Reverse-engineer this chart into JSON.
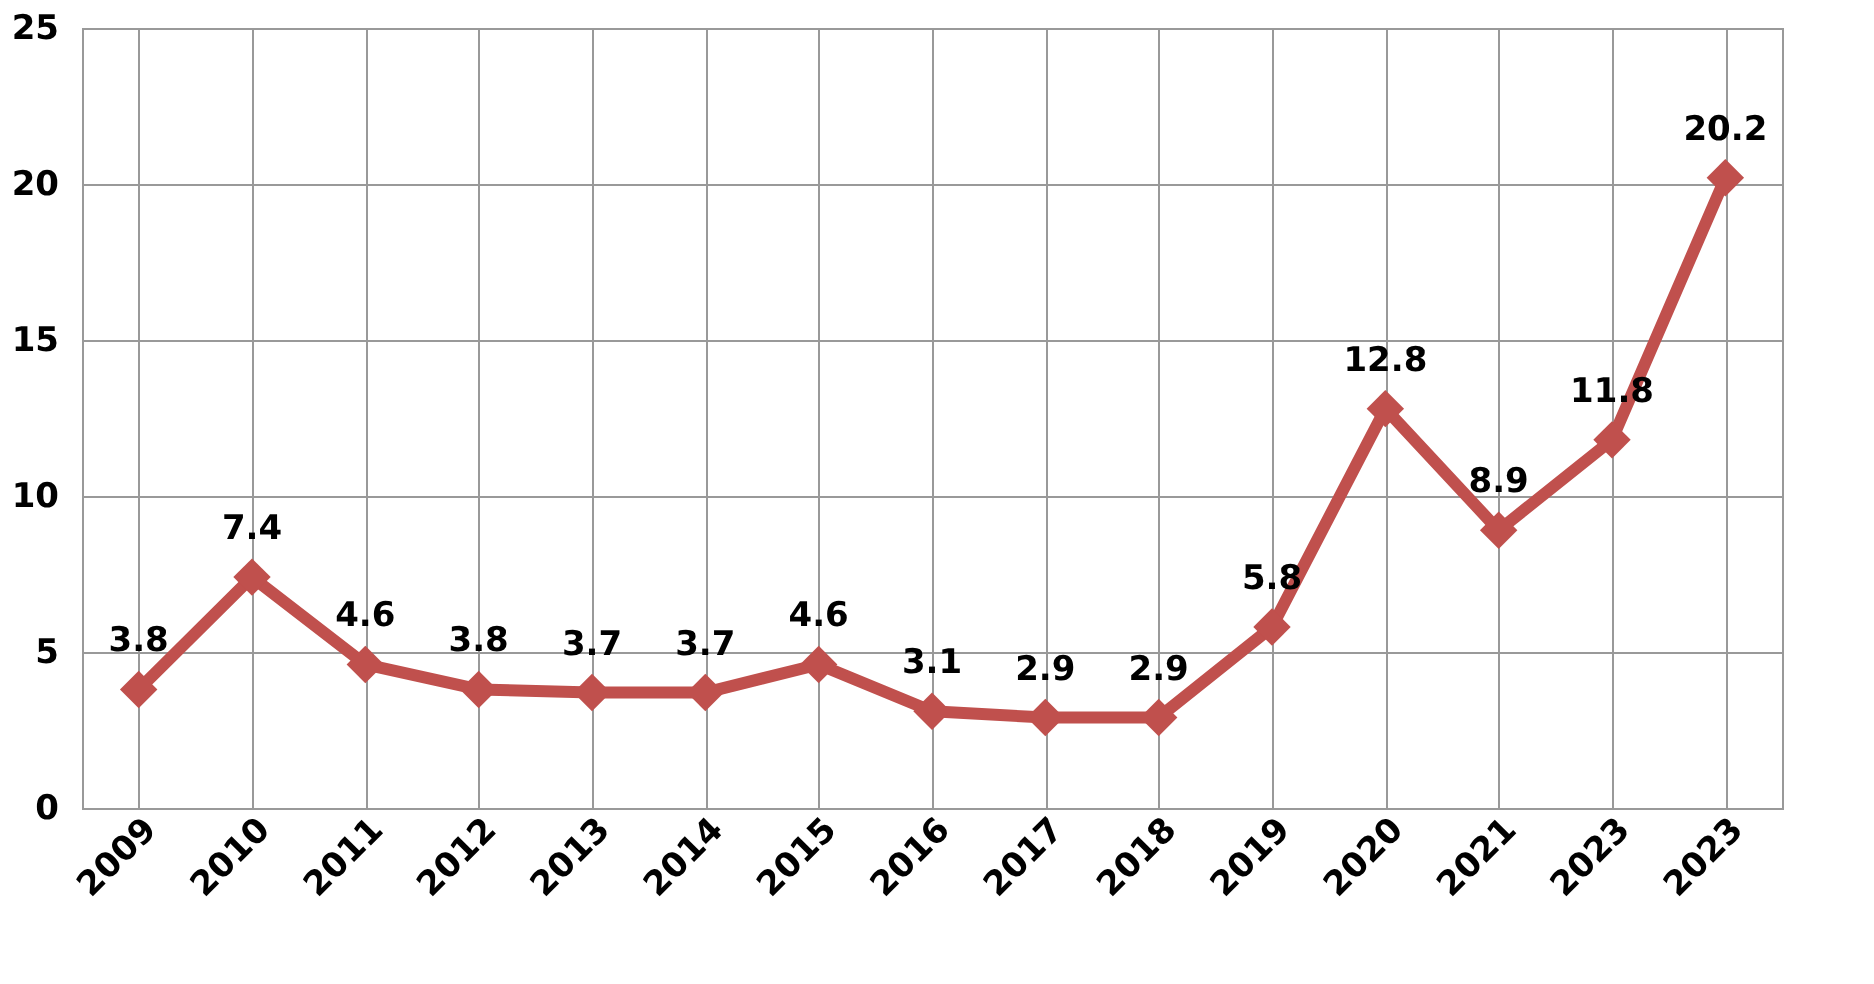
{
  "chart_data": {
    "type": "line",
    "categories": [
      "2009",
      "2010",
      "2011",
      "2012",
      "2013",
      "2014",
      "2015",
      "2016",
      "2017",
      "2018",
      "2019",
      "2020",
      "2021",
      "2023",
      "2023"
    ],
    "series": [
      {
        "color": "#c0504d",
        "values": [
          3.8,
          7.4,
          4.6,
          3.8,
          3.7,
          3.7,
          4.6,
          3.1,
          2.9,
          2.9,
          5.8,
          12.8,
          8.9,
          11.8,
          20.2
        ]
      }
    ],
    "ylim": [
      0,
      25
    ],
    "yticks": [
      0,
      5,
      10,
      15,
      20,
      25
    ],
    "grid": true,
    "marker": "diamond",
    "line_style": "solid",
    "data_labels": true
  }
}
